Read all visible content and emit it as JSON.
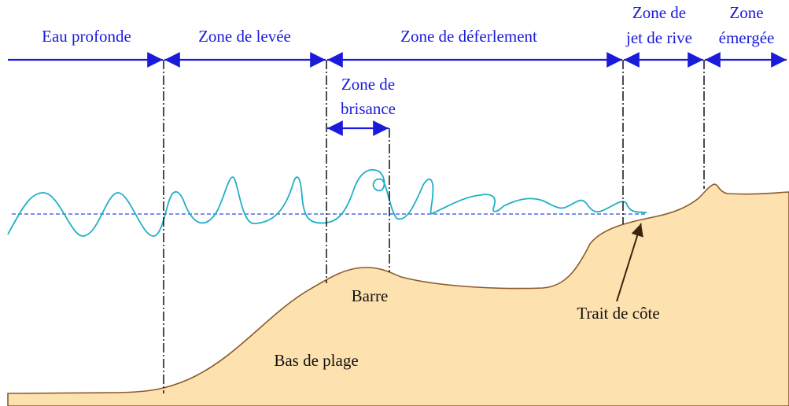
{
  "zones": [
    {
      "lines": [
        "Eau profonde"
      ]
    },
    {
      "lines": [
        "Zone de levée"
      ]
    },
    {
      "lines": [
        "Zone de déferlement"
      ]
    },
    {
      "lines": [
        "Zone de",
        "jet de rive"
      ]
    },
    {
      "lines": [
        "Zone",
        "émergée"
      ]
    }
  ],
  "subzone": {
    "lines": [
      "Zone de",
      "brisance"
    ]
  },
  "labels": {
    "bar": "Barre",
    "lower_beach": "Bas de plage",
    "shoreline": "Trait de côte"
  }
}
